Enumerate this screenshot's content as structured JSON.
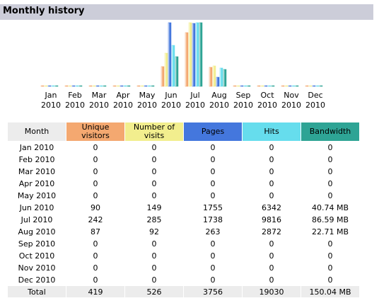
{
  "header": {
    "title": "Monthly history"
  },
  "colors": {
    "unique_visitors": "#f4a870",
    "visits": "#f2ee8e",
    "pages": "#4477dd",
    "hits": "#66dded",
    "bandwidth": "#2ea495"
  },
  "table": {
    "columns": [
      "Month",
      "Unique visitors",
      "Number of visits",
      "Pages",
      "Hits",
      "Bandwidth"
    ],
    "rows": [
      [
        "Jan 2010",
        "0",
        "0",
        "0",
        "0",
        "0"
      ],
      [
        "Feb 2010",
        "0",
        "0",
        "0",
        "0",
        "0"
      ],
      [
        "Mar 2010",
        "0",
        "0",
        "0",
        "0",
        "0"
      ],
      [
        "Apr 2010",
        "0",
        "0",
        "0",
        "0",
        "0"
      ],
      [
        "May 2010",
        "0",
        "0",
        "0",
        "0",
        "0"
      ],
      [
        "Jun 2010",
        "90",
        "149",
        "1755",
        "6342",
        "40.74 MB"
      ],
      [
        "Jul 2010",
        "242",
        "285",
        "1738",
        "9816",
        "86.59 MB"
      ],
      [
        "Aug 2010",
        "87",
        "92",
        "263",
        "2872",
        "22.71 MB"
      ],
      [
        "Sep 2010",
        "0",
        "0",
        "0",
        "0",
        "0"
      ],
      [
        "Oct 2010",
        "0",
        "0",
        "0",
        "0",
        "0"
      ],
      [
        "Nov 2010",
        "0",
        "0",
        "0",
        "0",
        "0"
      ],
      [
        "Dec 2010",
        "0",
        "0",
        "0",
        "0",
        "0"
      ]
    ],
    "total": [
      "Total",
      "419",
      "526",
      "3756",
      "19030",
      "150.04 MB"
    ]
  },
  "chart_data": {
    "type": "bar",
    "categories": [
      "Jan 2010",
      "Feb 2010",
      "Mar 2010",
      "Apr 2010",
      "May 2010",
      "Jun 2010",
      "Jul 2010",
      "Aug 2010",
      "Sep 2010",
      "Oct 2010",
      "Nov 2010",
      "Dec 2010"
    ],
    "series": [
      {
        "name": "Unique visitors",
        "values": [
          0,
          0,
          0,
          0,
          0,
          90,
          242,
          87,
          0,
          0,
          0,
          0
        ]
      },
      {
        "name": "Number of visits",
        "values": [
          0,
          0,
          0,
          0,
          0,
          149,
          285,
          92,
          0,
          0,
          0,
          0
        ]
      },
      {
        "name": "Pages",
        "values": [
          0,
          0,
          0,
          0,
          0,
          1755,
          1738,
          263,
          0,
          0,
          0,
          0
        ]
      },
      {
        "name": "Hits",
        "values": [
          0,
          0,
          0,
          0,
          0,
          6342,
          9816,
          2872,
          0,
          0,
          0,
          0
        ]
      },
      {
        "name": "Bandwidth",
        "values": [
          0,
          0,
          0,
          0,
          0,
          40.74,
          86.59,
          22.71,
          0,
          0,
          0,
          0
        ]
      }
    ],
    "legend": "none",
    "grid": false
  }
}
